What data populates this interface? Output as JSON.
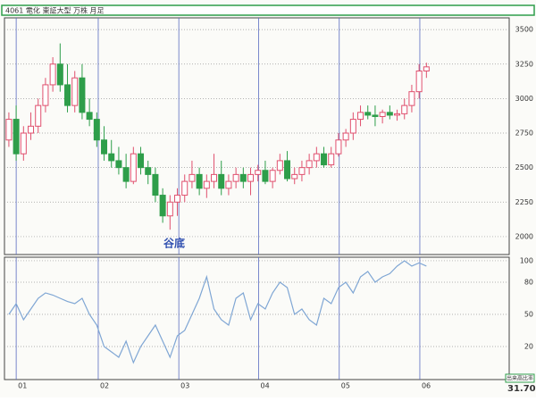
{
  "header": {
    "title": "4061 電化  東証大型  万株  月足"
  },
  "annotation": "谷底",
  "footer": {
    "label": "出来高比率",
    "value": "31.70"
  },
  "chart_data": [
    {
      "type": "candlestick",
      "up_color": "#e0506e",
      "down_color": "#2e9e4a",
      "grid": true,
      "x": [
        0,
        1,
        2,
        3,
        4,
        5,
        6,
        7,
        8,
        9,
        10,
        11,
        12,
        13,
        14,
        15,
        16,
        17,
        18,
        19,
        20,
        21,
        22,
        23,
        24,
        25,
        26,
        27,
        28,
        29,
        30,
        31,
        32,
        33,
        34,
        35,
        36,
        37,
        38,
        39,
        40,
        41,
        42,
        43,
        44,
        45,
        46,
        47,
        48,
        49,
        50,
        51,
        52,
        53,
        54,
        55,
        56,
        57
      ],
      "open": [
        2700,
        2850,
        2600,
        2750,
        2800,
        2950,
        3100,
        3250,
        3100,
        2950,
        3150,
        2900,
        2850,
        2700,
        2600,
        2550,
        2500,
        2400,
        2600,
        2500,
        2450,
        2300,
        2150,
        2250,
        2300,
        2400,
        2450,
        2350,
        2400,
        2450,
        2350,
        2400,
        2450,
        2400,
        2450,
        2480,
        2400,
        2480,
        2550,
        2420,
        2450,
        2500,
        2550,
        2600,
        2520,
        2600,
        2700,
        2750,
        2850,
        2900,
        2880,
        2870,
        2900,
        2880,
        2890,
        2950,
        3050,
        3200
      ],
      "high": [
        2900,
        2950,
        2800,
        2900,
        3000,
        3150,
        3300,
        3400,
        3250,
        3200,
        3250,
        3000,
        2900,
        2800,
        2700,
        2650,
        2600,
        2650,
        2650,
        2550,
        2500,
        2350,
        2300,
        2350,
        2450,
        2550,
        2500,
        2450,
        2600,
        2550,
        2450,
        2500,
        2500,
        2500,
        2520,
        2550,
        2500,
        2600,
        2620,
        2500,
        2550,
        2600,
        2650,
        2650,
        2650,
        2750,
        2780,
        2900,
        2950,
        2950,
        2950,
        2920,
        2950,
        2920,
        3000,
        3100,
        3250,
        3260
      ],
      "low": [
        2650,
        2550,
        2550,
        2700,
        2750,
        2900,
        3050,
        3050,
        2900,
        2900,
        2850,
        2800,
        2650,
        2550,
        2500,
        2450,
        2350,
        2380,
        2450,
        2380,
        2250,
        2100,
        2050,
        2150,
        2250,
        2350,
        2300,
        2280,
        2350,
        2300,
        2300,
        2350,
        2350,
        2300,
        2400,
        2380,
        2350,
        2450,
        2400,
        2380,
        2400,
        2450,
        2500,
        2500,
        2500,
        2580,
        2650,
        2700,
        2800,
        2850,
        2800,
        2820,
        2850,
        2840,
        2850,
        2900,
        3000,
        3150
      ],
      "close": [
        2850,
        2600,
        2750,
        2800,
        2950,
        3100,
        3250,
        3100,
        2950,
        3150,
        2900,
        2850,
        2700,
        2600,
        2550,
        2500,
        2400,
        2600,
        2500,
        2450,
        2300,
        2150,
        2250,
        2300,
        2400,
        2450,
        2350,
        2400,
        2450,
        2350,
        2400,
        2450,
        2400,
        2450,
        2480,
        2400,
        2480,
        2550,
        2420,
        2450,
        2500,
        2550,
        2600,
        2520,
        2600,
        2700,
        2750,
        2850,
        2900,
        2880,
        2870,
        2900,
        2880,
        2890,
        2950,
        3050,
        3200,
        3230
      ],
      "xlim": [
        -0.6,
        68.3
      ],
      "xticks": [
        {
          "value": 1,
          "label": "01"
        },
        {
          "value": 12.2,
          "label": "02"
        },
        {
          "value": 23.2,
          "label": "03"
        },
        {
          "value": 34.1,
          "label": "04"
        },
        {
          "value": 45.1,
          "label": "05"
        },
        {
          "value": 56.1,
          "label": "06"
        }
      ],
      "ylim": [
        1870,
        3585
      ],
      "yticks": [
        2000,
        2250,
        2500,
        2750,
        3000,
        3250,
        3500
      ]
    },
    {
      "type": "line",
      "color": "#7fa6d4",
      "grid": true,
      "x": [
        0,
        1,
        2,
        3,
        4,
        5,
        6,
        7,
        8,
        9,
        10,
        11,
        12,
        13,
        14,
        15,
        16,
        17,
        18,
        19,
        20,
        21,
        22,
        23,
        24,
        25,
        26,
        27,
        28,
        29,
        30,
        31,
        32,
        33,
        34,
        35,
        36,
        37,
        38,
        39,
        40,
        41,
        42,
        43,
        44,
        45,
        46,
        47,
        48,
        49,
        50,
        51,
        52,
        53,
        54,
        55,
        56,
        57
      ],
      "values": [
        50,
        60,
        45,
        55,
        65,
        70,
        68,
        65,
        62,
        60,
        65,
        50,
        40,
        20,
        15,
        10,
        25,
        5,
        20,
        30,
        40,
        25,
        10,
        30,
        35,
        50,
        65,
        85,
        55,
        45,
        40,
        65,
        70,
        45,
        60,
        55,
        70,
        80,
        75,
        50,
        55,
        45,
        40,
        65,
        60,
        75,
        80,
        70,
        85,
        90,
        80,
        85,
        88,
        95,
        100,
        95,
        98,
        95
      ],
      "xlim": [
        -0.6,
        68.3
      ],
      "ylim": [
        -10.8,
        103.3
      ],
      "yticks": [
        20,
        50,
        80,
        100
      ]
    }
  ]
}
